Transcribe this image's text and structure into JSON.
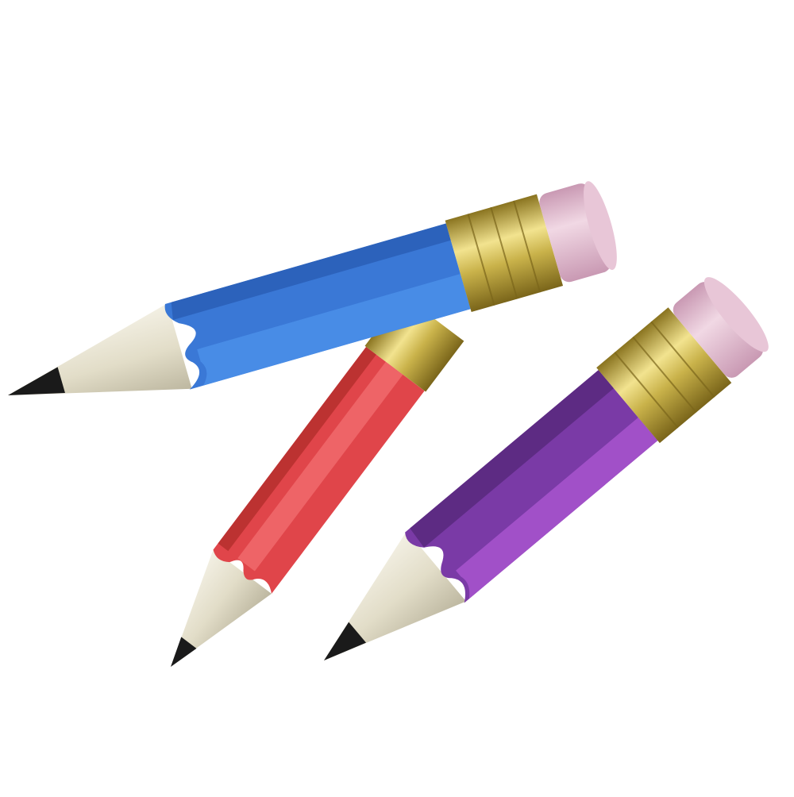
{
  "scene": {
    "background": "#ffffff",
    "pencils": [
      {
        "name": "blue",
        "body": "#3a78d6",
        "body_light": "#4a8ee8",
        "body_dark": "#2b5fb8",
        "wood": "#e8e4d6",
        "wood_shade": "#c9c4b0",
        "lead": "#1a1a1a",
        "ferrule": "#c9b24a",
        "ferrule_light": "#efe08a",
        "eraser": "#e3bfd1",
        "eraser_light": "#f1d8e4"
      },
      {
        "name": "red",
        "body": "#e0454a",
        "body_light": "#f06a6c",
        "body_dark": "#b8302f",
        "wood": "#e8e4d6",
        "wood_shade": "#c9c4b0",
        "lead": "#1a1a1a",
        "ferrule": "#c9b24a",
        "ferrule_light": "#efe08a",
        "eraser": "#e3bfd1",
        "eraser_light": "#f1d8e4"
      },
      {
        "name": "purple",
        "body": "#7a3aa6",
        "body_light": "#a553cc",
        "body_dark": "#5a2a80",
        "wood": "#e8e4d6",
        "wood_shade": "#c9c4b0",
        "lead": "#1a1a1a",
        "ferrule": "#c9b24a",
        "ferrule_light": "#efe08a",
        "eraser": "#e3bfd1",
        "eraser_light": "#f1d8e4"
      }
    ]
  }
}
